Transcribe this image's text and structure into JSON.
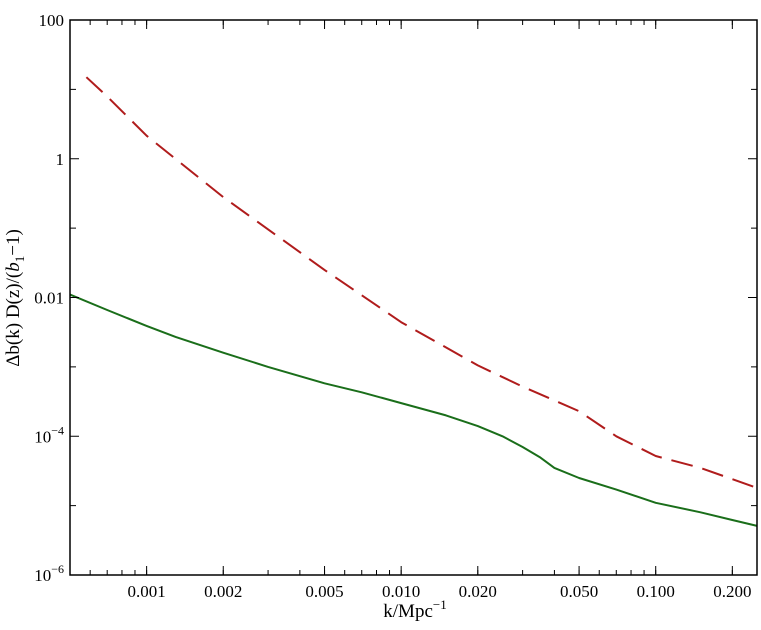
{
  "chart_data": {
    "type": "line",
    "xlabel_main": "k/Mpc",
    "xlabel_sup": "−1",
    "ylabel": {
      "part1": "Δb(k) D(z)/(",
      "var": "b",
      "sub": "1",
      "part2": "−1)"
    },
    "x_scale": "log",
    "y_scale": "log",
    "xlim": [
      0.0005,
      0.25
    ],
    "ylim": [
      1e-06,
      100
    ],
    "x_ticks": [
      {
        "value": 0.001,
        "label": "0.001"
      },
      {
        "value": 0.002,
        "label": "0.002"
      },
      {
        "value": 0.005,
        "label": "0.005"
      },
      {
        "value": 0.01,
        "label": "0.010"
      },
      {
        "value": 0.02,
        "label": "0.020"
      },
      {
        "value": 0.05,
        "label": "0.050"
      },
      {
        "value": 0.1,
        "label": "0.100"
      },
      {
        "value": 0.2,
        "label": "0.200"
      }
    ],
    "y_ticks": [
      {
        "value": 1e-06,
        "base": "10",
        "exp": "−6"
      },
      {
        "value": 0.0001,
        "base": "10",
        "exp": "−4"
      },
      {
        "value": 0.01,
        "base": "0.01",
        "exp": ""
      },
      {
        "value": 1,
        "base": "1",
        "exp": ""
      },
      {
        "value": 100,
        "base": "100",
        "exp": ""
      }
    ],
    "grid": false,
    "legend": "none",
    "series": [
      {
        "style": "dashed",
        "color": "#b01c1c",
        "x": [
          0.00058,
          0.0007,
          0.001,
          0.002,
          0.005,
          0.01,
          0.02,
          0.03,
          0.05,
          0.07,
          0.1,
          0.15,
          0.25
        ],
        "y": [
          15,
          7.9,
          2.15,
          0.28,
          0.025,
          0.0044,
          0.00105,
          0.00052,
          0.00023,
          0.0001,
          5.2e-05,
          3.5e-05,
          1.8e-05
        ]
      },
      {
        "style": "solid",
        "color": "#1a6e1a",
        "x": [
          0.0005,
          0.0007,
          0.001,
          0.0013,
          0.002,
          0.003,
          0.005,
          0.007,
          0.01,
          0.015,
          0.02,
          0.025,
          0.03,
          0.035,
          0.04,
          0.05,
          0.07,
          0.1,
          0.15,
          0.2,
          0.25
        ],
        "y": [
          0.011,
          0.0066,
          0.0039,
          0.0027,
          0.0016,
          0.001,
          0.00058,
          0.00043,
          0.0003,
          0.0002,
          0.00014,
          0.0001,
          7e-05,
          5e-05,
          3.5e-05,
          2.5e-05,
          1.7e-05,
          1.1e-05,
          8e-06,
          6.2e-06,
          5.1e-06
        ]
      }
    ]
  }
}
